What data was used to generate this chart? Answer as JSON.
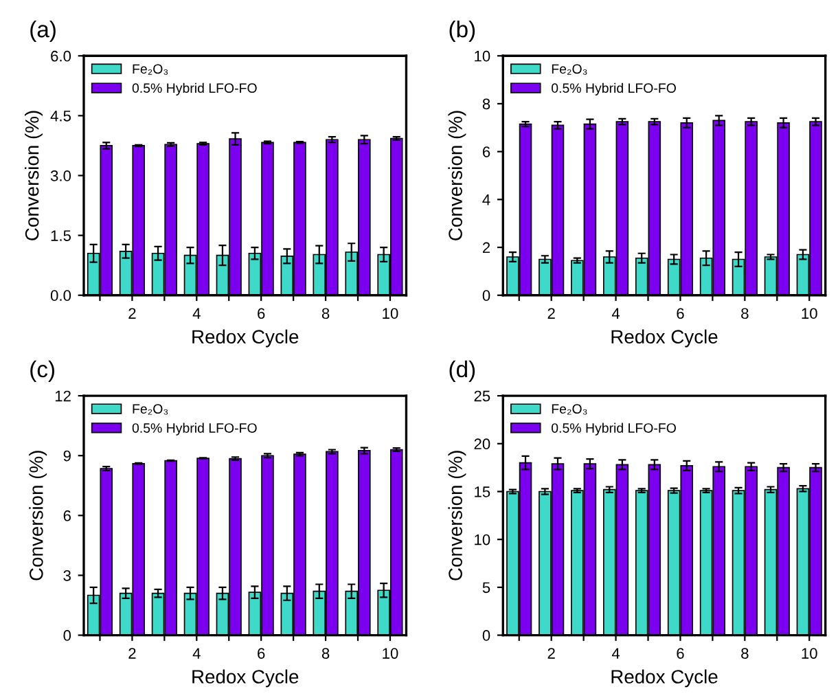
{
  "chart_data": [
    {
      "type": "bar",
      "title": "(a)",
      "xlabel": "Redox Cycle",
      "ylabel": "Conversion (%)",
      "x": [
        1,
        2,
        3,
        4,
        5,
        6,
        7,
        8,
        9,
        10
      ],
      "xlim": [
        0.5,
        10.5
      ],
      "xticks": [
        {
          "value": 1,
          "label": null
        },
        2,
        {
          "value": 3,
          "label": null
        },
        4,
        {
          "value": 5,
          "label": null
        },
        6,
        {
          "value": 7,
          "label": null
        },
        8,
        {
          "value": 9,
          "label": null
        },
        10
      ],
      "ylim": [
        0,
        6
      ],
      "yticks": [
        {
          "value": 0,
          "label": "0.0"
        },
        1.5,
        {
          "value": 3,
          "label": "3.0"
        },
        4.5,
        {
          "value": 6,
          "label": "6.0"
        }
      ],
      "legend": "top left",
      "series": [
        {
          "name": "Fe₂O₃",
          "color": "#3fd9c9",
          "values": [
            1.05,
            1.1,
            1.05,
            1.0,
            1.0,
            1.05,
            0.98,
            1.02,
            1.08,
            1.02
          ],
          "errors": [
            0.22,
            0.17,
            0.17,
            0.2,
            0.25,
            0.15,
            0.18,
            0.22,
            0.22,
            0.18
          ]
        },
        {
          "name": "0.5% Hybrid LFO-FO",
          "color": "#7b00f0",
          "values": [
            3.75,
            3.75,
            3.78,
            3.8,
            3.92,
            3.83,
            3.83,
            3.9,
            3.9,
            3.93
          ],
          "errors": [
            0.08,
            0.02,
            0.04,
            0.03,
            0.15,
            0.03,
            0.02,
            0.07,
            0.1,
            0.04
          ]
        }
      ]
    },
    {
      "type": "bar",
      "title": "(b)",
      "xlabel": "Redox Cycle",
      "ylabel": "Conversion (%)",
      "x": [
        1,
        2,
        3,
        4,
        5,
        6,
        7,
        8,
        9,
        10
      ],
      "xlim": [
        0.5,
        10.5
      ],
      "xticks": [
        {
          "value": 1,
          "label": null
        },
        2,
        {
          "value": 3,
          "label": null
        },
        4,
        {
          "value": 5,
          "label": null
        },
        6,
        {
          "value": 7,
          "label": null
        },
        8,
        {
          "value": 9,
          "label": null
        },
        10
      ],
      "ylim": [
        0,
        10
      ],
      "yticks": [
        0,
        2,
        4,
        6,
        8,
        10
      ],
      "legend": "top left",
      "series": [
        {
          "name": "Fe₂O₃",
          "color": "#3fd9c9",
          "values": [
            1.6,
            1.5,
            1.45,
            1.6,
            1.55,
            1.5,
            1.55,
            1.5,
            1.6,
            1.7
          ],
          "errors": [
            0.2,
            0.15,
            0.1,
            0.25,
            0.2,
            0.2,
            0.3,
            0.3,
            0.1,
            0.2
          ]
        },
        {
          "name": "0.5% Hybrid LFO-FO",
          "color": "#7b00f0",
          "values": [
            7.15,
            7.1,
            7.15,
            7.25,
            7.25,
            7.2,
            7.3,
            7.25,
            7.2,
            7.25
          ],
          "errors": [
            0.1,
            0.15,
            0.2,
            0.12,
            0.12,
            0.2,
            0.2,
            0.15,
            0.2,
            0.15
          ]
        }
      ]
    },
    {
      "type": "bar",
      "title": "(c)",
      "xlabel": "Redox Cycle",
      "ylabel": "Conversion (%)",
      "x": [
        1,
        2,
        3,
        4,
        5,
        6,
        7,
        8,
        9,
        10
      ],
      "xlim": [
        0.5,
        10.5
      ],
      "xticks": [
        {
          "value": 1,
          "label": null
        },
        2,
        {
          "value": 3,
          "label": null
        },
        4,
        {
          "value": 5,
          "label": null
        },
        6,
        {
          "value": 7,
          "label": null
        },
        8,
        {
          "value": 9,
          "label": null
        },
        10
      ],
      "ylim": [
        0,
        12
      ],
      "yticks": [
        0,
        3,
        6,
        9,
        12
      ],
      "legend": "top left",
      "series": [
        {
          "name": "Fe₂O₃",
          "color": "#3fd9c9",
          "values": [
            2.0,
            2.1,
            2.1,
            2.1,
            2.1,
            2.15,
            2.1,
            2.2,
            2.2,
            2.25
          ],
          "errors": [
            0.4,
            0.25,
            0.2,
            0.3,
            0.3,
            0.3,
            0.35,
            0.35,
            0.35,
            0.35
          ]
        },
        {
          "name": "0.5% Hybrid LFO-FO",
          "color": "#7b00f0",
          "values": [
            8.35,
            8.6,
            8.75,
            8.87,
            8.85,
            9.0,
            9.07,
            9.2,
            9.25,
            9.3
          ],
          "errors": [
            0.1,
            0.03,
            0.02,
            0.02,
            0.08,
            0.1,
            0.08,
            0.1,
            0.15,
            0.08
          ]
        }
      ]
    },
    {
      "type": "bar",
      "title": "(d)",
      "xlabel": "Redox Cycle",
      "ylabel": "Conversion (%)",
      "x": [
        1,
        2,
        3,
        4,
        5,
        6,
        7,
        8,
        9,
        10
      ],
      "xlim": [
        0.5,
        10.5
      ],
      "xticks": [
        {
          "value": 1,
          "label": null
        },
        2,
        {
          "value": 3,
          "label": null
        },
        4,
        {
          "value": 5,
          "label": null
        },
        6,
        {
          "value": 7,
          "label": null
        },
        8,
        {
          "value": 9,
          "label": null
        },
        10
      ],
      "ylim": [
        0,
        25
      ],
      "yticks": [
        0,
        5,
        10,
        15,
        20,
        25
      ],
      "legend": "top left",
      "series": [
        {
          "name": "Fe₂O₃",
          "color": "#3fd9c9",
          "values": [
            15.0,
            15.0,
            15.1,
            15.2,
            15.1,
            15.1,
            15.1,
            15.1,
            15.2,
            15.3
          ],
          "errors": [
            0.2,
            0.3,
            0.2,
            0.3,
            0.2,
            0.25,
            0.2,
            0.3,
            0.3,
            0.3
          ]
        },
        {
          "name": "0.5% Hybrid LFO-FO",
          "color": "#7b00f0",
          "values": [
            18.0,
            17.9,
            17.9,
            17.8,
            17.8,
            17.7,
            17.6,
            17.6,
            17.5,
            17.5
          ],
          "errors": [
            0.7,
            0.6,
            0.5,
            0.5,
            0.5,
            0.5,
            0.5,
            0.4,
            0.4,
            0.4
          ]
        }
      ]
    }
  ]
}
